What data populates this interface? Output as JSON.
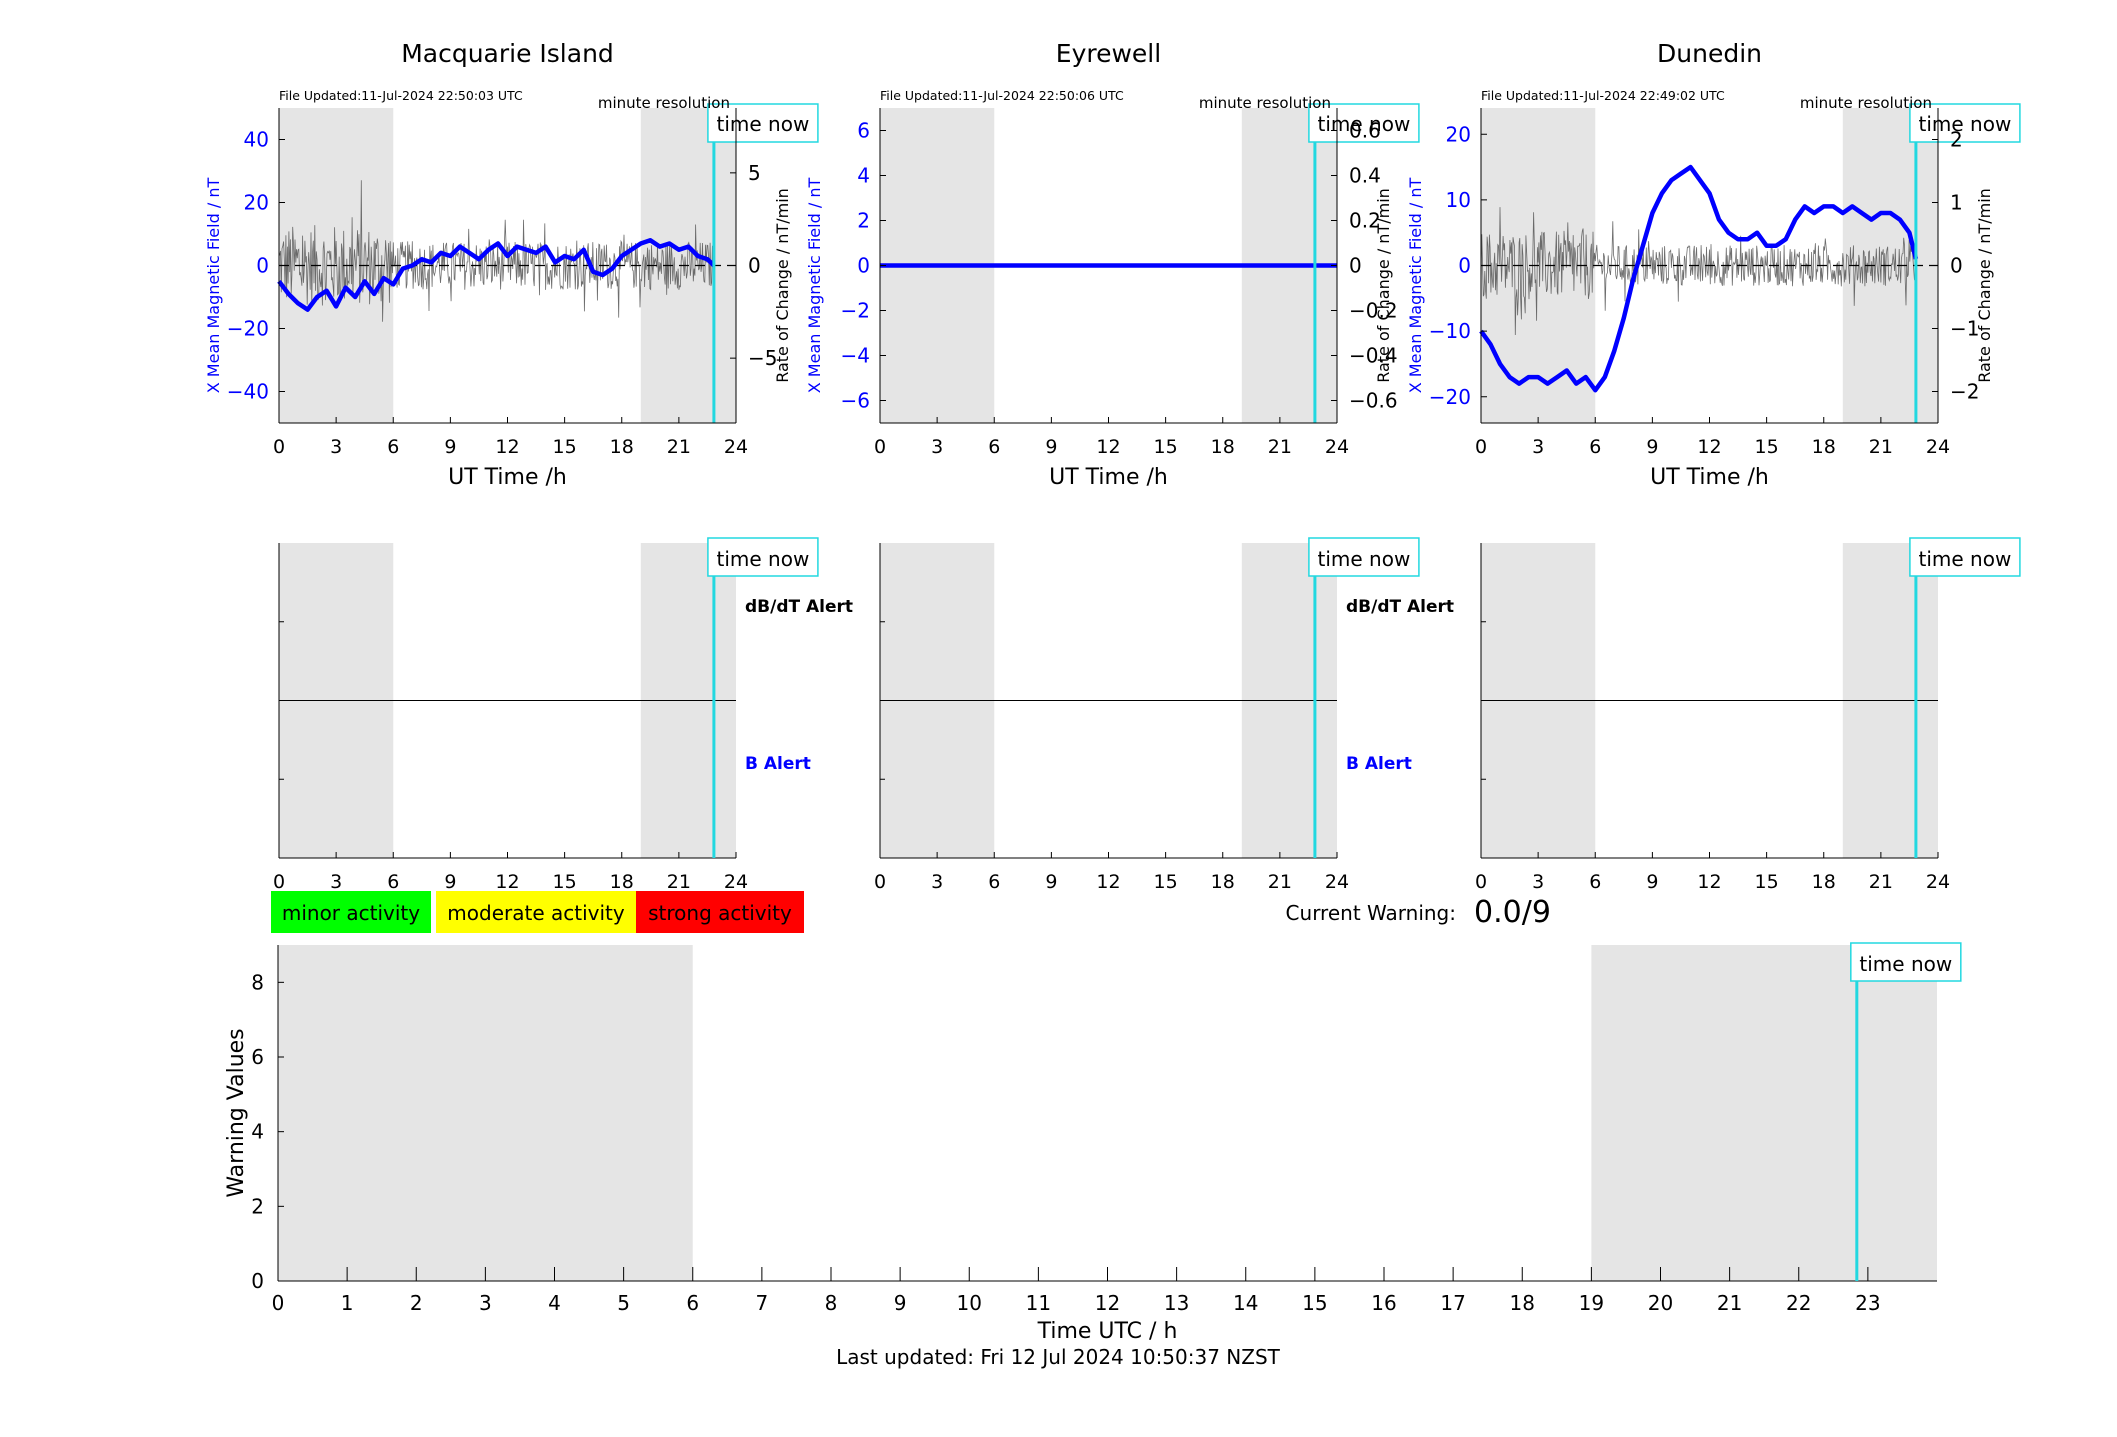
{
  "page": {
    "last_updated": "Last updated: Fri 12 Jul 2024 10:50:37 NZST",
    "current_warning_label": "Current Warning:",
    "current_warning_value": "0.0/9",
    "time_now_label": "time now",
    "time_now_hours": 22.84,
    "night_shading": [
      [
        0,
        6
      ],
      [
        19,
        24
      ]
    ]
  },
  "colors": {
    "mean_field": "#0000ff",
    "rate": "#555555",
    "time_now": "#22d8e0",
    "shading": "#e5e5e5",
    "minor": "#00ff00",
    "moderate": "#ffff00",
    "strong": "#ff0000"
  },
  "legend": {
    "minor": "minor activity",
    "moderate": "moderate activity",
    "strong": "strong activity"
  },
  "chart_data": [
    {
      "type": "line",
      "station": "Macquarie Island",
      "title": "Macquarie Island",
      "file_updated": "File Updated:11-Jul-2024 22:50:03 UTC",
      "resolution": "minute resolution",
      "xlabel": "UT Time /h",
      "ylabel": "X Mean Magnetic Field / nT",
      "y2label": "Rate of Change / nT/min",
      "xlim": [
        0,
        24
      ],
      "xticks": [
        0,
        3,
        6,
        9,
        12,
        15,
        18,
        21,
        24
      ],
      "ylim": [
        -50,
        50
      ],
      "yticks": [
        -40,
        -20,
        0,
        20,
        40
      ],
      "y2lim": [
        -8.5,
        8.5
      ],
      "y2ticks": [
        -5,
        0,
        5
      ],
      "series": [
        {
          "name": "X Mean Magnetic Field / nT",
          "x": [
            0,
            0.5,
            1,
            1.5,
            2,
            2.5,
            3,
            3.5,
            4,
            4.5,
            5,
            5.5,
            6,
            6.5,
            7,
            7.5,
            8,
            8.5,
            9,
            9.5,
            10,
            10.5,
            11,
            11.5,
            12,
            12.5,
            13,
            13.5,
            14,
            14.5,
            15,
            15.5,
            16,
            16.5,
            17,
            17.5,
            18,
            18.5,
            19,
            19.5,
            20,
            20.5,
            21,
            21.5,
            22,
            22.5,
            22.84
          ],
          "values": [
            -5,
            -9,
            -12,
            -14,
            -10,
            -8,
            -13,
            -7,
            -10,
            -5,
            -9,
            -4,
            -6,
            -1,
            0,
            2,
            1,
            4,
            3,
            6,
            4,
            2,
            5,
            7,
            3,
            6,
            5,
            4,
            6,
            1,
            3,
            2,
            5,
            -2,
            -3,
            -1,
            3,
            5,
            7,
            8,
            6,
            7,
            5,
            6,
            3,
            2,
            0
          ]
        }
      ],
      "rate_amplitude": 2.2
    },
    {
      "type": "line",
      "station": "Eyrewell",
      "title": "Eyrewell",
      "file_updated": "File Updated:11-Jul-2024 22:50:06 UTC",
      "resolution": "minute resolution",
      "xlabel": "UT Time /h",
      "ylabel": "X Mean Magnetic Field / nT",
      "y2label": "Rate of Change / nT/min",
      "xlim": [
        0,
        24
      ],
      "xticks": [
        0,
        3,
        6,
        9,
        12,
        15,
        18,
        21,
        24
      ],
      "ylim": [
        -7,
        7
      ],
      "yticks": [
        -6,
        -4,
        -2,
        0,
        2,
        4,
        6
      ],
      "y2lim": [
        -0.7,
        0.7
      ],
      "y2ticks": [
        -0.6,
        -0.4,
        -0.2,
        0,
        0.2,
        0.4,
        0.6
      ],
      "series": [
        {
          "name": "X Mean Magnetic Field / nT",
          "x": [
            0,
            24
          ],
          "values": [
            0,
            0
          ]
        }
      ],
      "rate_amplitude": 0
    },
    {
      "type": "line",
      "station": "Dunedin",
      "title": "Dunedin",
      "file_updated": "File Updated:11-Jul-2024 22:49:02 UTC",
      "resolution": "minute resolution",
      "xlabel": "UT Time /h",
      "ylabel": "X Mean Magnetic Field / nT",
      "y2label": "Rate of Change / nT/min",
      "xlim": [
        0,
        24
      ],
      "xticks": [
        0,
        3,
        6,
        9,
        12,
        15,
        18,
        21,
        24
      ],
      "ylim": [
        -24,
        24
      ],
      "yticks": [
        -20,
        -10,
        0,
        10,
        20
      ],
      "y2lim": [
        -2.5,
        2.5
      ],
      "y2ticks": [
        -2,
        -1,
        0,
        1,
        2
      ],
      "series": [
        {
          "name": "X Mean Magnetic Field / nT",
          "x": [
            0,
            0.5,
            1,
            1.5,
            2,
            2.5,
            3,
            3.5,
            4,
            4.5,
            5,
            5.5,
            6,
            6.5,
            7,
            7.5,
            8,
            8.5,
            9,
            9.5,
            10,
            10.5,
            11,
            11.5,
            12,
            12.5,
            13,
            13.5,
            14,
            14.5,
            15,
            15.5,
            16,
            16.5,
            17,
            17.5,
            18,
            18.5,
            19,
            19.5,
            20,
            20.5,
            21,
            21.5,
            22,
            22.5,
            22.84
          ],
          "values": [
            -10,
            -12,
            -15,
            -17,
            -18,
            -17,
            -17,
            -18,
            -17,
            -16,
            -18,
            -17,
            -19,
            -17,
            -13,
            -8,
            -2,
            3,
            8,
            11,
            13,
            14,
            15,
            13,
            11,
            7,
            5,
            4,
            4,
            5,
            3,
            3,
            4,
            7,
            9,
            8,
            9,
            9,
            8,
            9,
            8,
            7,
            8,
            8,
            7,
            5,
            1
          ]
        }
      ],
      "rate_amplitude": 0.55
    }
  ],
  "alert_panels": [
    {
      "station": "Macquarie Island",
      "dbdt_label": "dB/dT Alert",
      "b_label": "B Alert",
      "xticks": [
        0,
        3,
        6,
        9,
        12,
        15,
        18,
        21,
        24
      ]
    },
    {
      "station": "Eyrewell",
      "dbdt_label": "dB/dT Alert",
      "b_label": "B Alert",
      "xticks": [
        0,
        3,
        6,
        9,
        12,
        15,
        18,
        21,
        24
      ]
    },
    {
      "station": "Dunedin",
      "xticks": [
        0,
        3,
        6,
        9,
        12,
        15,
        18,
        21,
        24
      ]
    }
  ],
  "warning_chart": {
    "type": "bar",
    "xlabel": "Time UTC / h",
    "ylabel": "Warning Values",
    "xlim": [
      0,
      24
    ],
    "xticks": [
      0,
      1,
      2,
      3,
      4,
      5,
      6,
      7,
      8,
      9,
      10,
      11,
      12,
      13,
      14,
      15,
      16,
      17,
      18,
      19,
      20,
      21,
      22,
      23
    ],
    "ylim": [
      0,
      9
    ],
    "yticks": [
      0,
      2,
      4,
      6,
      8
    ],
    "values": []
  }
}
